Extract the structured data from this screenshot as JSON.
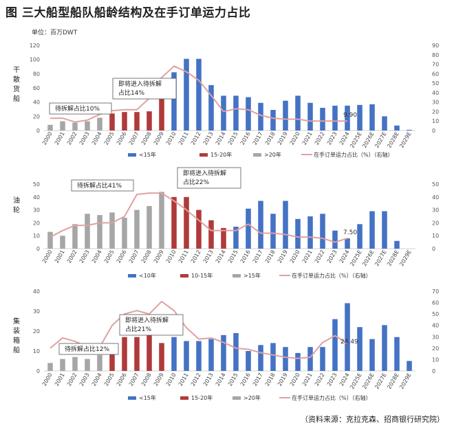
{
  "title": "图  三大船型船队船龄结构及在手订单运力占比",
  "unit": "单位：百万DWT",
  "source": "（资料来源：克拉克森、招商银行研究院）",
  "colors": {
    "blue": "#4472C4",
    "red": "#B03A3A",
    "gray": "#A6A6A6",
    "line": "#E0A0A0"
  },
  "chart_data": [
    {
      "type": "bar",
      "side_label": "干散货船",
      "categories": [
        "2000",
        "2001",
        "2002",
        "2003",
        "2004",
        "2005",
        "2006",
        "2007",
        "2008",
        "2009",
        "2010",
        "2011",
        "2012",
        "2013",
        "2014",
        "2015",
        "2016",
        "2017",
        "2018",
        "2019",
        "2020",
        "2021",
        "2022",
        "2023",
        "2024",
        "2025E",
        "2026E",
        "2027E",
        "2028E",
        "2029E"
      ],
      "series": [
        {
          "name": ">20年",
          "color_key": "gray",
          "values": [
            8,
            13,
            11,
            13,
            18,
            0,
            0,
            0,
            0,
            0,
            0,
            0,
            0,
            0,
            0,
            0,
            0,
            0,
            0,
            0,
            0,
            0,
            0,
            0,
            0,
            0,
            0,
            0,
            0,
            0
          ]
        },
        {
          "name": "15-20年",
          "color_key": "red",
          "values": [
            0,
            0,
            0,
            0,
            0,
            24,
            26,
            26,
            27,
            47,
            0,
            0,
            0,
            0,
            0,
            0,
            0,
            0,
            0,
            0,
            0,
            0,
            0,
            0,
            0,
            0,
            0,
            0,
            0,
            0
          ]
        },
        {
          "name": "<15年",
          "color_key": "blue",
          "values": [
            0,
            0,
            0,
            0,
            0,
            0,
            0,
            0,
            0,
            0,
            82,
            101,
            101,
            64,
            49,
            49,
            47,
            39,
            29,
            42,
            49,
            39,
            32,
            35,
            35,
            36,
            37,
            20,
            7,
            1
          ]
        }
      ],
      "line": {
        "name": "在手订单运力占比（%）（右轴）",
        "values": [
          13,
          13,
          9,
          11,
          17,
          21,
          22,
          22,
          34,
          56,
          68,
          62,
          53,
          37,
          20,
          23,
          22,
          16,
          13,
          12,
          12,
          10,
          10,
          10,
          10
        ]
      },
      "ylim": [
        0,
        120
      ],
      "y2lim": [
        0,
        90
      ],
      "yticks": [
        "0",
        "20",
        "40",
        "60",
        "80",
        "100",
        "120"
      ],
      "y2ticks": [
        "0",
        "10",
        "20",
        "30",
        "40",
        "50",
        "60",
        "70",
        "80",
        "90"
      ],
      "legend": [
        "<15年",
        "15-20年",
        ">20年",
        "在手订单运力占比（%）（右轴）"
      ],
      "annotations": [
        {
          "text": "待拆解占比10%"
        },
        {
          "text": "即将进入待拆解",
          "text2": "占比14%"
        }
      ],
      "data_label": "9.90"
    },
    {
      "type": "bar",
      "side_label": "油轮",
      "categories": [
        "2000",
        "2001",
        "2002",
        "2003",
        "2004",
        "2005",
        "2006",
        "2007",
        "2008",
        "2009",
        "2010",
        "2011",
        "2012",
        "2013",
        "2014",
        "2015",
        "2016",
        "2017",
        "2018",
        "2019",
        "2020",
        "2021",
        "2022",
        "2023",
        "2024",
        "2025E",
        "2026E",
        "2027E",
        "2028E",
        "2029E"
      ],
      "series": [
        {
          "name": ">15年",
          "color_key": "gray",
          "values": [
            13,
            10,
            19,
            27,
            26,
            28,
            24,
            30,
            33,
            44,
            0,
            0,
            0,
            0,
            0,
            0,
            0,
            0,
            0,
            0,
            0,
            0,
            0,
            0,
            0,
            0,
            0,
            0,
            0,
            0
          ]
        },
        {
          "name": "10-15年",
          "color_key": "red",
          "values": [
            0,
            0,
            0,
            0,
            0,
            0,
            0,
            0,
            0,
            0,
            40,
            40,
            30,
            22,
            16,
            0,
            0,
            0,
            0,
            0,
            0,
            0,
            0,
            0,
            0,
            0,
            0,
            0,
            0,
            0
          ]
        },
        {
          "name": "<10年",
          "color_key": "blue",
          "values": [
            0,
            0,
            0,
            0,
            0,
            0,
            0,
            0,
            0,
            0,
            0,
            0,
            0,
            0,
            0,
            17,
            31,
            37,
            27,
            37,
            23,
            25,
            27,
            14,
            8,
            19,
            29,
            29,
            6,
            0
          ]
        }
      ],
      "line": {
        "name": "在手订单运力占比（%）（右轴）",
        "values": [
          9,
          14,
          18,
          18,
          20,
          20,
          25,
          42,
          43,
          43,
          37,
          30,
          22,
          14,
          14,
          14,
          19,
          12,
          12,
          11,
          9,
          9,
          8,
          5,
          8
        ]
      },
      "ylim": [
        0,
        50
      ],
      "y2lim": [
        0,
        50
      ],
      "yticks": [
        "0",
        "10",
        "20",
        "30",
        "40",
        "50"
      ],
      "y2ticks": [
        "0",
        "10",
        "20",
        "30",
        "40",
        "50"
      ],
      "legend": [
        "<10年",
        "10-15年",
        ">15年",
        "在手订单运力占比（%）（右轴）"
      ],
      "annotations": [
        {
          "text": "待拆解占比41%"
        },
        {
          "text": "即将进入待拆解",
          "text2": "占比22%"
        }
      ],
      "data_label": "7.50"
    },
    {
      "type": "bar",
      "side_label": "集装箱船",
      "categories": [
        "2000",
        "2001",
        "2002",
        "2003",
        "2004",
        "2005",
        "2006",
        "2007",
        "2008",
        "2009",
        "2010",
        "2011",
        "2012",
        "2013",
        "2014",
        "2015",
        "2016",
        "2017",
        "2018",
        "2019",
        "2020",
        "2021",
        "2022",
        "2023",
        "2024",
        "2025E",
        "2026E",
        "2027E",
        "2028E",
        "2029E"
      ],
      "series": [
        {
          "name": ">20年",
          "color_key": "gray",
          "values": [
            4,
            6,
            7,
            6,
            8,
            0,
            0,
            0,
            0,
            0,
            0,
            0,
            0,
            0,
            0,
            0,
            0,
            0,
            0,
            0,
            0,
            0,
            0,
            0,
            0,
            0,
            0,
            0,
            0,
            0
          ]
        },
        {
          "name": "15-20年",
          "color_key": "red",
          "values": [
            0,
            0,
            0,
            0,
            0,
            12,
            17,
            17,
            19,
            14,
            0,
            0,
            0,
            0,
            0,
            0,
            0,
            0,
            0,
            0,
            0,
            0,
            0,
            0,
            0,
            0,
            0,
            0,
            0,
            0
          ]
        },
        {
          "name": "<15年",
          "color_key": "blue",
          "values": [
            0,
            0,
            0,
            0,
            0,
            0,
            0,
            0,
            0,
            0,
            17,
            15,
            15,
            16,
            18,
            19,
            10,
            13,
            14,
            12,
            9,
            12,
            12,
            26,
            34,
            22,
            16,
            23,
            17,
            5
          ]
        }
      ],
      "line": {
        "name": "在手订单运力占比（%）（右轴）",
        "values": [
          20,
          29,
          26,
          21,
          21,
          40,
          50,
          53,
          50,
          61,
          53,
          38,
          28,
          29,
          25,
          20,
          19,
          16,
          14,
          12,
          11,
          12,
          25,
          31,
          24
        ]
      },
      "ylim": [
        0,
        40
      ],
      "y2lim": [
        0,
        70
      ],
      "yticks": [
        "0",
        "10",
        "20",
        "30",
        "40"
      ],
      "y2ticks": [
        "0",
        "10",
        "20",
        "30",
        "40",
        "50",
        "60",
        "70"
      ],
      "legend": [
        "<15年",
        "15-20年",
        ">20年",
        "在手订单运力占比（%）（右轴）"
      ],
      "annotations": [
        {
          "text": "待拆解占比12%"
        },
        {
          "text": "即将进入待拆解",
          "text2": "占比21%"
        }
      ],
      "data_label": "24.49"
    }
  ]
}
